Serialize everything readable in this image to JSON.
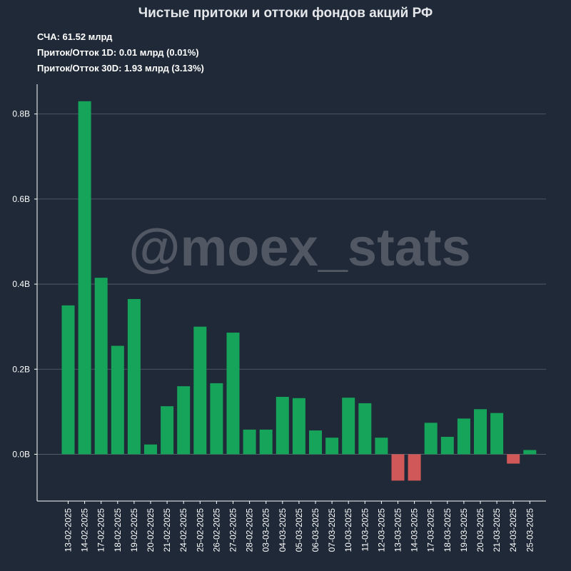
{
  "header": {
    "title": "Чистые притоки и оттоки фондов акций РФ",
    "stats": [
      "СЧА: 61.52 млрд",
      "Приток/Отток 1D: 0.01 млрд (0.01%)",
      "Приток/Отток 30D: 1.93 млрд (3.13%)"
    ]
  },
  "watermark": "@moex_stats",
  "colors": {
    "background": "#1f2937",
    "inflow": "#16a35a",
    "outflow": "#d05858",
    "grid": "#5b6470",
    "axis": "#ffffff"
  },
  "chart_data": {
    "type": "bar",
    "categories": [
      "13-02-2025",
      "14-02-2025",
      "17-02-2025",
      "18-02-2025",
      "19-02-2025",
      "20-02-2025",
      "21-02-2025",
      "24-02-2025",
      "25-02-2025",
      "26-02-2025",
      "27-02-2025",
      "28-02-2025",
      "03-03-2025",
      "04-03-2025",
      "05-03-2025",
      "06-03-2025",
      "07-03-2025",
      "10-03-2025",
      "11-03-2025",
      "12-03-2025",
      "13-03-2025",
      "14-03-2025",
      "17-03-2025",
      "18-03-2025",
      "19-03-2025",
      "20-03-2025",
      "21-03-2025",
      "24-03-2025",
      "25-03-2025"
    ],
    "values": [
      0.35,
      0.83,
      0.415,
      0.255,
      0.365,
      0.023,
      0.113,
      0.16,
      0.3,
      0.167,
      0.286,
      0.058,
      0.058,
      0.135,
      0.132,
      0.056,
      0.039,
      0.133,
      0.12,
      0.039,
      -0.062,
      -0.062,
      0.074,
      0.041,
      0.084,
      0.106,
      0.097,
      -0.022,
      0.01
    ],
    "y_ticks": [
      {
        "value": 0.0,
        "label": "0.0B"
      },
      {
        "value": 0.2,
        "label": "0.2B"
      },
      {
        "value": 0.4,
        "label": "0.4B"
      },
      {
        "value": 0.6,
        "label": "0.6B"
      },
      {
        "value": 0.8,
        "label": "0.8B"
      }
    ],
    "ylim": [
      -0.11,
      0.87
    ],
    "grid": "horizontal",
    "title": "Чистые притоки и оттоки фондов акций РФ",
    "xlabel": "",
    "ylabel": ""
  }
}
